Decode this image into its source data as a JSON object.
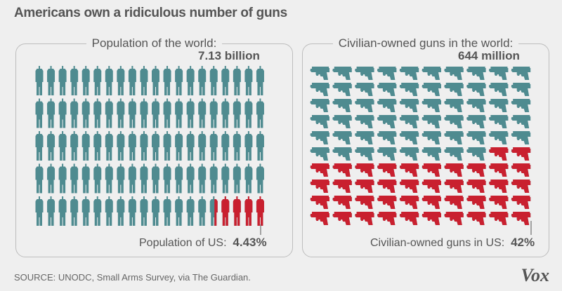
{
  "title": "Americans own a ridiculous number of guns",
  "source": "SOURCE: UNODC, Small Arms Survey, via The Guardian.",
  "logo": "Vox",
  "colors": {
    "world": "#4f8b90",
    "us": "#c9202f",
    "background": "#efefef"
  },
  "chart_data": [
    {
      "type": "pictograph",
      "icon": "person-icon",
      "title": "Population of the world:",
      "total_label": "7.13 billion",
      "icons_total": 100,
      "icons_per_row": 20,
      "highlight_label": "Population of US:",
      "highlight_value_label": "4.43%",
      "highlight_percent": 4.43
    },
    {
      "type": "pictograph",
      "icon": "handgun-icon",
      "title": "Civilian-owned guns in the world:",
      "total_label": "644 million",
      "icons_total": 100,
      "icons_per_row": 10,
      "highlight_label": "Civilian-owned guns in US:",
      "highlight_value_label": "42%",
      "highlight_percent": 42
    }
  ]
}
